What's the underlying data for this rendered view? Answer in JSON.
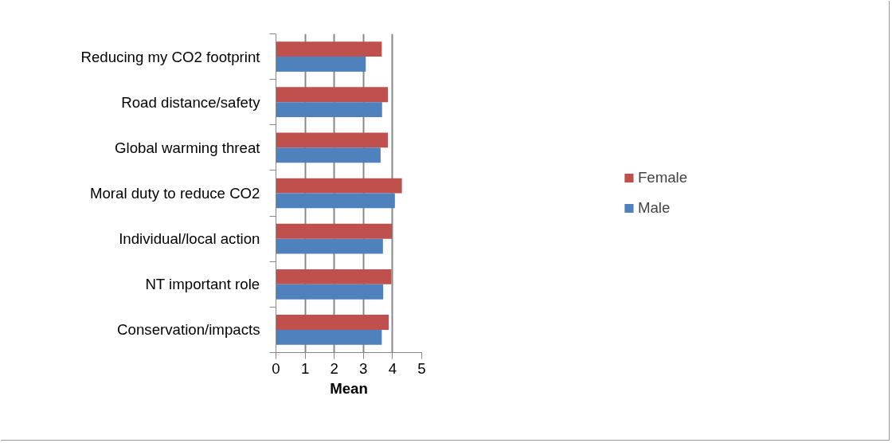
{
  "chart_data": {
    "type": "bar",
    "orientation": "horizontal",
    "xlabel": "Mean",
    "categories": [
      "Reducing my CO2 footprint",
      "Road distance/safety",
      "Global warming threat",
      "Moral duty to reduce CO2",
      "Individual/local action",
      "NT important role",
      "Conservation/impacts"
    ],
    "series": [
      {
        "name": "Female",
        "color": "#c0504d",
        "values": [
          3.63,
          3.84,
          3.84,
          4.32,
          3.98,
          3.96,
          3.87
        ]
      },
      {
        "name": "Male",
        "color": "#4f81bd",
        "values": [
          3.08,
          3.64,
          3.59,
          4.08,
          3.67,
          3.68,
          3.63
        ]
      }
    ],
    "xlim": [
      0,
      5
    ],
    "xticks": [
      0,
      1,
      2,
      3,
      4,
      5
    ],
    "grid": "x",
    "legend": "right"
  }
}
